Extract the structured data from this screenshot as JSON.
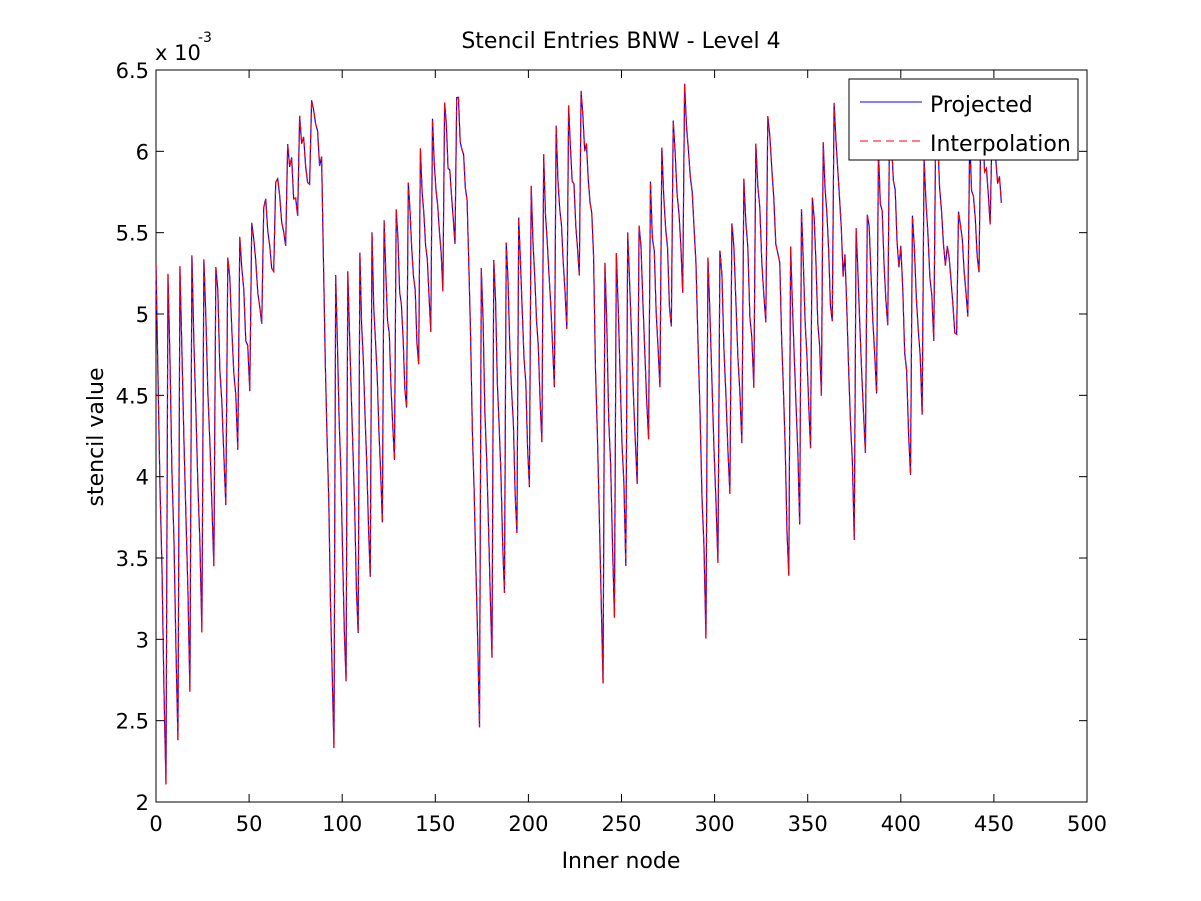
{
  "chart_data": {
    "type": "line",
    "title": "Stencil Entries BNW - Level 4",
    "xlabel": "Inner node",
    "ylabel": "stencil value",
    "exponent_label": "x 10",
    "exponent_power": "-3",
    "xlim": [
      0,
      500
    ],
    "ylim": [
      0.002,
      0.0065
    ],
    "xticks": [
      0,
      50,
      100,
      150,
      200,
      250,
      300,
      350,
      400,
      450,
      500
    ],
    "xtick_labels": [
      "0",
      "50",
      "100",
      "150",
      "200",
      "250",
      "300",
      "350",
      "400",
      "450",
      "500"
    ],
    "yticks": [
      0.002,
      0.0025,
      0.003,
      0.0035,
      0.004,
      0.0045,
      0.005,
      0.0055,
      0.006,
      0.0065
    ],
    "ytick_labels": [
      "2",
      "2.5",
      "3",
      "3.5",
      "4",
      "4.5",
      "5",
      "5.5",
      "6",
      "6.5"
    ],
    "grid": false,
    "legend_position": "top-right",
    "x_max_point": 455,
    "pattern": {
      "groups": [
        {
          "start": 0,
          "end": 90,
          "seg_maxs": [
            0.00525,
            0.00525,
            0.00526,
            0.00528,
            0.00531,
            0.00535,
            0.0054,
            0.00547,
            0.00558,
            0.00575,
            0.0059,
            0.00605,
            0.0062,
            0.00635
          ],
          "seg_mins": [
            0.0021,
            0.0024,
            0.00275,
            0.0031,
            0.00345,
            0.00382,
            0.0042,
            0.00455,
            0.0049,
            0.0052,
            0.0054,
            0.0056,
            0.00575,
            0.0059
          ]
        },
        {
          "start": 90,
          "end": 168,
          "seg_maxs": [
            0.00524,
            0.00525,
            0.00528,
            0.00533,
            0.0054,
            0.0055,
            0.00563,
            0.0058,
            0.00595,
            0.0061,
            0.00625,
            0.00635
          ],
          "seg_mins": [
            0.0023,
            0.00268,
            0.003,
            0.0034,
            0.00375,
            0.0041,
            0.0044,
            0.0047,
            0.00495,
            0.0052,
            0.00545,
            0.0057
          ]
        },
        {
          "start": 168,
          "end": 235,
          "seg_maxs": [
            0.00527,
            0.00528,
            0.00535,
            0.00545,
            0.00557,
            0.00572,
            0.00588,
            0.00605,
            0.0062,
            0.00633
          ],
          "seg_mins": [
            0.0025,
            0.0029,
            0.00328,
            0.00365,
            0.00395,
            0.00425,
            0.0046,
            0.00495,
            0.00525,
            0.0056
          ]
        },
        {
          "start": 235,
          "end": 290,
          "seg_maxs": [
            0.00525,
            0.0053,
            0.00538,
            0.0055,
            0.00565,
            0.0058,
            0.00598,
            0.00618,
            0.00633
          ],
          "seg_mins": [
            0.00275,
            0.00315,
            0.0035,
            0.0039,
            0.0042,
            0.00455,
            0.0049,
            0.0052,
            0.00555
          ]
        },
        {
          "start": 290,
          "end": 335,
          "seg_maxs": [
            0.00528,
            0.00535,
            0.00548,
            0.00565,
            0.00585,
            0.00605,
            0.00628
          ],
          "seg_mins": [
            0.00305,
            0.00345,
            0.00385,
            0.0042,
            0.00455,
            0.0049,
            0.0053
          ]
        },
        {
          "start": 335,
          "end": 370,
          "seg_maxs": [
            0.0053,
            0.0054,
            0.00558,
            0.0058,
            0.00605,
            0.0063
          ],
          "seg_mins": [
            0.00335,
            0.00378,
            0.00415,
            0.0045,
            0.0049,
            0.0053
          ]
        },
        {
          "start": 370,
          "end": 400,
          "seg_maxs": [
            0.00535,
            0.0055,
            0.00572,
            0.00598,
            0.00625
          ],
          "seg_mins": [
            0.00368,
            0.0041,
            0.0045,
            0.0049,
            0.0053
          ]
        },
        {
          "start": 400,
          "end": 425,
          "seg_maxs": [
            0.0054,
            0.0056,
            0.0059,
            0.0062
          ],
          "seg_mins": [
            0.00402,
            0.00445,
            0.00485,
            0.00525
          ]
        },
        {
          "start": 425,
          "end": 455,
          "seg_maxs": [
            0.00545,
            0.0057,
            0.006,
            0.0062,
            0.0061
          ],
          "seg_mins": [
            0.0048,
            0.005,
            0.00525,
            0.0056,
            0.0057
          ]
        }
      ]
    },
    "series": [
      {
        "name": "Projected",
        "color": "#0000ff",
        "style": "solid"
      },
      {
        "name": "Interpolation",
        "color": "#ff0000",
        "style": "dashed"
      }
    ]
  }
}
